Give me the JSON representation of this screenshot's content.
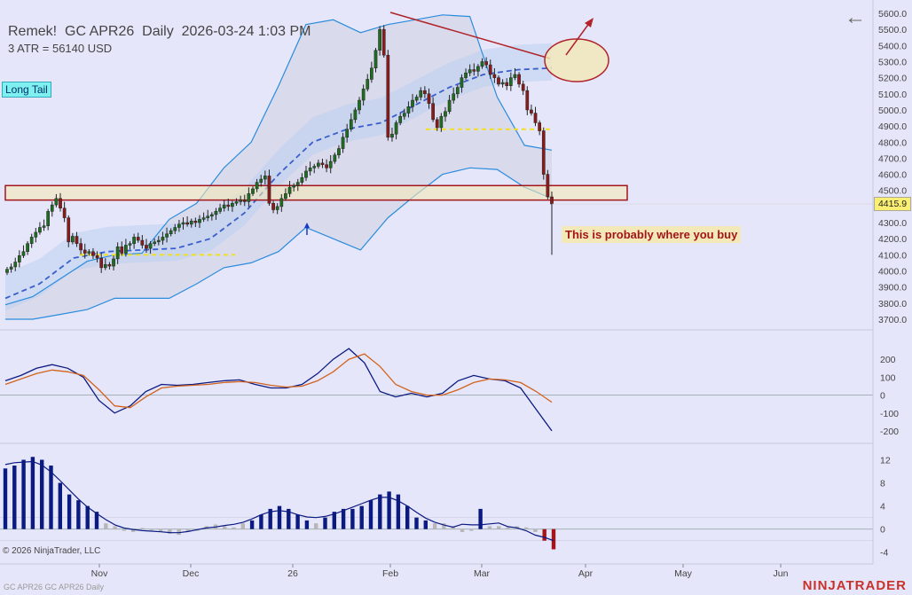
{
  "header": {
    "title": "Remek!  GC APR26  Daily  2026-03-24 1:03 PM",
    "subtitle": "3 ATR = 56140 USD"
  },
  "tag": "Long Tail",
  "annotation": "This is probably where you buy",
  "last_price_label": "4415.9",
  "copyright": "© 2026 NinjaTrader, LLC",
  "footer_left": "GC APR26 GC APR26 Daily",
  "brand": "NINJATRADER",
  "colors": {
    "background": "#e6e6fa",
    "candle_up": "#1f6d20",
    "candle_down": "#8b1a1a",
    "band_blue": "#2a8cdc",
    "ema_dash": "#3a5fcc",
    "support_box_fill": "#f3e9b8",
    "support_box_border": "#a3151b",
    "histogram_up": "#0a1a80",
    "histogram_neutral": "#b7b7b7",
    "histogram_down": "#a3151b",
    "macd_line": "#0a1a80",
    "signal_line": "#d2621c"
  },
  "chart_data": [
    {
      "type": "candlestick",
      "name": "price",
      "x_labels": [
        "Nov",
        "Dec",
        "26",
        "Feb",
        "Mar",
        "Apr",
        "May",
        "Jun"
      ],
      "y_ticks": [
        "5600.0",
        "5500.0",
        "5400.0",
        "5300.0",
        "5200.0",
        "5100.0",
        "5000.0",
        "4900.0",
        "4800.0",
        "4700.0",
        "4600.0",
        "4500.0",
        "4400.0",
        "4300.0",
        "4200.0",
        "4100.0",
        "4000.0",
        "3900.0",
        "3800.0",
        "3700.0"
      ],
      "ylim": [
        3660,
        5640
      ],
      "last_price": 4415.9,
      "support_zone": [
        4440,
        4530
      ],
      "closes": [
        4010,
        4025,
        4055,
        4095,
        4120,
        4170,
        4210,
        4240,
        4270,
        4280,
        4370,
        4410,
        4450,
        4390,
        4330,
        4180,
        4215,
        4170,
        4130,
        4110,
        4120,
        4095,
        4080,
        4020,
        4040,
        4030,
        4075,
        4150,
        4110,
        4160,
        4170,
        4210,
        4190,
        4160,
        4140,
        4170,
        4180,
        4190,
        4210,
        4230,
        4250,
        4270,
        4290,
        4300,
        4290,
        4310,
        4300,
        4320,
        4330,
        4340,
        4350,
        4370,
        4390,
        4410,
        4400,
        4420,
        4430,
        4440,
        4430,
        4480,
        4510,
        4550,
        4570,
        4590,
        4420,
        4380,
        4400,
        4450,
        4480,
        4520,
        4530,
        4550,
        4580,
        4620,
        4640,
        4650,
        4670,
        4660,
        4640,
        4680,
        4720,
        4760,
        4830,
        4880,
        4940,
        5000,
        5060,
        5130,
        5190,
        5260,
        5370,
        5500,
        5340,
        4830,
        4850,
        4920,
        4960,
        4980,
        5020,
        5060,
        5080,
        5120,
        5100,
        5040,
        4940,
        4890,
        4960,
        4990,
        5060,
        5100,
        5140,
        5200,
        5230,
        5250,
        5240,
        5270,
        5300,
        5280,
        5220,
        5200,
        5160,
        5170,
        5150,
        5200,
        5220,
        5160,
        5120,
        5000,
        4980,
        4920,
        4870,
        4600,
        4460,
        4415.9
      ],
      "upper_band_sample": [
        3790,
        3840,
        3950,
        4060,
        4100,
        4110,
        4320,
        4420,
        4640,
        4800,
        5150,
        5530,
        5560,
        5480,
        5530,
        5560,
        5590,
        5580,
        5080,
        4780,
        4750
      ],
      "lower_band_sample": [
        3700,
        3700,
        3730,
        3760,
        3830,
        3830,
        3830,
        3920,
        4020,
        4050,
        4120,
        4270,
        4200,
        4130,
        4330,
        4470,
        4600,
        4640,
        4630,
        4520,
        4450
      ],
      "ema_sample": [
        3830,
        3920,
        4080,
        4120,
        4130,
        4140,
        4200,
        4360,
        4600,
        4800,
        4880,
        4920,
        5030,
        5140,
        5220,
        5250,
        5260
      ]
    },
    {
      "type": "line",
      "name": "macd",
      "y_ticks": [
        "200",
        "100",
        "0",
        "-100",
        "-200"
      ],
      "ylim": [
        -230,
        300
      ],
      "series": [
        {
          "name": "macd",
          "values": [
            80,
            110,
            150,
            170,
            150,
            100,
            -30,
            -100,
            -60,
            20,
            60,
            55,
            60,
            70,
            80,
            85,
            60,
            40,
            40,
            60,
            120,
            200,
            260,
            180,
            20,
            -10,
            10,
            -10,
            10,
            80,
            110,
            90,
            80,
            40,
            -80,
            -200
          ]
        },
        {
          "name": "signal",
          "values": [
            60,
            90,
            120,
            140,
            130,
            110,
            30,
            -60,
            -70,
            -10,
            40,
            50,
            55,
            60,
            70,
            75,
            70,
            55,
            45,
            50,
            80,
            130,
            200,
            230,
            160,
            60,
            20,
            0,
            0,
            30,
            70,
            90,
            85,
            70,
            20,
            -40
          ]
        }
      ]
    },
    {
      "type": "bar",
      "name": "histogram",
      "y_ticks": [
        "12",
        "8",
        "4",
        "0",
        "-4"
      ],
      "ylim": [
        -4.5,
        13
      ],
      "values": [
        10.5,
        11,
        12,
        12.5,
        12,
        11,
        8,
        6,
        5,
        4,
        3,
        1,
        0.5,
        -0.3,
        -0.5,
        0.2,
        -0.2,
        -0.5,
        -0.8,
        -1,
        -0.5,
        -0.3,
        0.5,
        0.8,
        0.5,
        0.3,
        1,
        1.5,
        2.5,
        3.5,
        4,
        3.5,
        2.5,
        1.5,
        1,
        2,
        3,
        3.5,
        3.5,
        4,
        5,
        6,
        6.5,
        6,
        4,
        2,
        1.5,
        1,
        1,
        0.5,
        -0.5,
        -0.3,
        3.5,
        0.5,
        0.5,
        0.3,
        0.5,
        0.3,
        -0.5,
        -2,
        -3.5
      ]
    }
  ]
}
